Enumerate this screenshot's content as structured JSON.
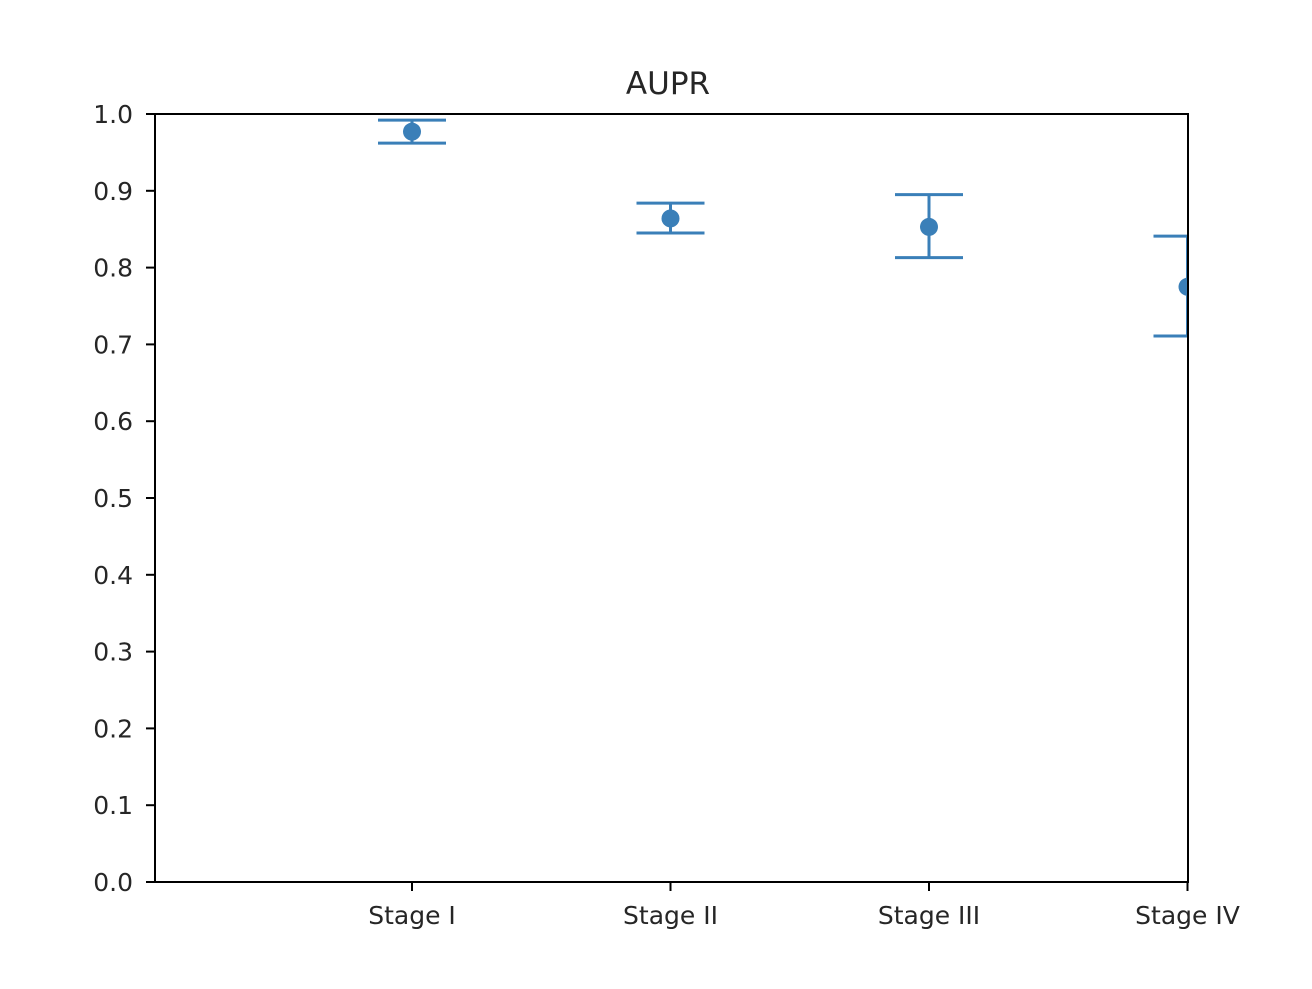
{
  "chart_data": {
    "type": "scatter",
    "title": "AUPR",
    "xlabel": "",
    "ylabel": "",
    "categories": [
      "Stage I",
      "Stage II",
      "Stage III",
      "Stage IV"
    ],
    "series": [
      {
        "values": [
          0.977,
          0.864,
          0.853,
          0.775
        ],
        "error_low": [
          0.962,
          0.845,
          0.813,
          0.711
        ],
        "error_high": [
          0.992,
          0.884,
          0.895,
          0.841
        ]
      }
    ],
    "ylim": [
      0.0,
      1.0
    ],
    "yticks": [
      "0.0",
      "0.1",
      "0.2",
      "0.3",
      "0.4",
      "0.5",
      "0.6",
      "0.7",
      "0.8",
      "0.9",
      "1.0"
    ],
    "grid": false,
    "legend": "none",
    "colors": {
      "series": "#3a7fb8",
      "axis": "#000000",
      "text": "#262626"
    }
  }
}
